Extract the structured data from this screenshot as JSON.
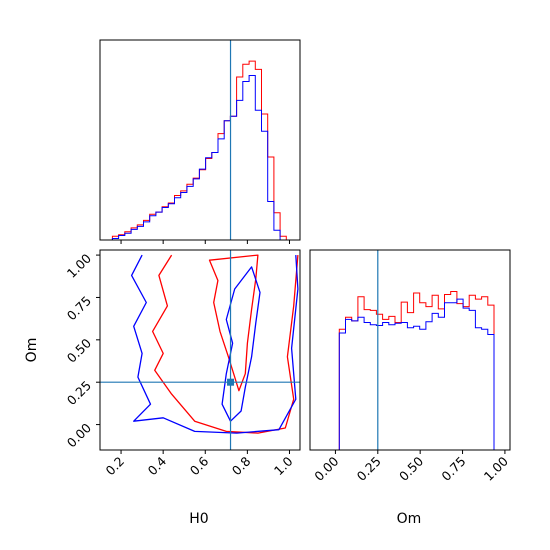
{
  "chart_data": [
    {
      "type": "histogram",
      "panel": "H0 marginal",
      "x_range": [
        0.1,
        1.05
      ],
      "bins": [
        0.1,
        0.1295,
        0.159,
        0.1885,
        0.218,
        0.2475,
        0.277,
        0.3065,
        0.336,
        0.3655,
        0.395,
        0.4245,
        0.454,
        0.4835,
        0.513,
        0.5425,
        0.572,
        0.6015,
        0.631,
        0.6605,
        0.69,
        0.7195,
        0.749,
        0.7785,
        0.808,
        0.8375,
        0.867,
        0.8965,
        0.926,
        0.9555,
        0.985,
        1.0145,
        1.044
      ],
      "series": [
        {
          "color": "#ff0000",
          "counts": [
            0,
            0,
            0.5,
            0.7,
            1.1,
            1.6,
            2.0,
            2.6,
            3.4,
            3.7,
            4.4,
            4.9,
            5.9,
            6.5,
            7.4,
            8.2,
            9.3,
            10.8,
            11.6,
            14.1,
            15.8,
            16.4,
            21.6,
            23.3,
            23.7,
            22.6,
            16.7,
            11.0,
            3.6,
            0.5,
            0,
            0
          ]
        },
        {
          "color": "#0000ff",
          "counts": [
            0,
            0,
            0.2,
            0.6,
            0.9,
            1.4,
            1.8,
            2.4,
            3.2,
            3.7,
            4.3,
            4.8,
            5.6,
            6.3,
            7.1,
            8.1,
            9.4,
            10.9,
            11.6,
            13.4,
            15.8,
            16.4,
            18.5,
            21.0,
            21.8,
            17.2,
            14.4,
            5.1,
            1.3,
            0,
            0,
            0
          ]
        }
      ],
      "marker_lines": {
        "x": 0.72,
        "color": "#1f77b4"
      }
    },
    {
      "type": "contour",
      "panel": "H0 vs Om",
      "xlabel": "H0",
      "ylabel": "Om",
      "x_range": [
        0.1,
        1.05
      ],
      "y_range": [
        -0.15,
        1.03
      ],
      "x_ticks": [
        "0.2",
        "0.4",
        "0.6",
        "0.8",
        "1.0"
      ],
      "y_ticks": [
        "0.00",
        "0.25",
        "0.50",
        "0.75",
        "1.00"
      ],
      "marker": {
        "x": 0.72,
        "y": 0.25,
        "color": "#1f77b4"
      },
      "series": [
        {
          "color": "#ff0000",
          "inner": [
            [
              0.62,
              0.97
            ],
            [
              0.66,
              0.85
            ],
            [
              0.64,
              0.72
            ],
            [
              0.67,
              0.55
            ],
            [
              0.71,
              0.4
            ],
            [
              0.74,
              0.28
            ],
            [
              0.76,
              0.2
            ],
            [
              0.79,
              0.3
            ],
            [
              0.8,
              0.48
            ],
            [
              0.82,
              0.68
            ],
            [
              0.84,
              0.86
            ],
            [
              0.85,
              1.0
            ]
          ],
          "outer_left": [
            [
              0.44,
              1.0
            ],
            [
              0.38,
              0.88
            ],
            [
              0.42,
              0.7
            ],
            [
              0.35,
              0.55
            ],
            [
              0.4,
              0.42
            ],
            [
              0.36,
              0.32
            ],
            [
              0.44,
              0.18
            ],
            [
              0.55,
              0.02
            ],
            [
              0.7,
              -0.04
            ],
            [
              0.85,
              -0.05
            ],
            [
              0.98,
              -0.02
            ],
            [
              1.02,
              0.15
            ],
            [
              0.99,
              0.4
            ],
            [
              1.02,
              0.7
            ],
            [
              1.04,
              1.0
            ]
          ]
        },
        {
          "color": "#0000ff",
          "inner": [
            [
              0.82,
              0.93
            ],
            [
              0.86,
              0.78
            ],
            [
              0.84,
              0.6
            ],
            [
              0.82,
              0.4
            ],
            [
              0.79,
              0.22
            ],
            [
              0.77,
              0.08
            ],
            [
              0.72,
              0.02
            ],
            [
              0.68,
              0.12
            ],
            [
              0.7,
              0.3
            ],
            [
              0.73,
              0.48
            ],
            [
              0.7,
              0.62
            ],
            [
              0.74,
              0.8
            ]
          ],
          "outer_left": [
            [
              0.3,
              1.0
            ],
            [
              0.25,
              0.88
            ],
            [
              0.32,
              0.72
            ],
            [
              0.26,
              0.58
            ],
            [
              0.3,
              0.42
            ],
            [
              0.28,
              0.28
            ],
            [
              0.34,
              0.12
            ],
            [
              0.26,
              0.02
            ],
            [
              0.4,
              0.04
            ],
            [
              0.55,
              -0.04
            ],
            [
              0.75,
              -0.05
            ],
            [
              0.95,
              -0.03
            ],
            [
              1.03,
              0.15
            ],
            [
              1.01,
              0.45
            ],
            [
              1.04,
              0.8
            ],
            [
              1.03,
              1.0
            ]
          ]
        }
      ]
    },
    {
      "type": "histogram",
      "panel": "Om marginal",
      "xlabel": "Om",
      "x_range": [
        -0.15,
        1.03
      ],
      "x_ticks": [
        "0.00",
        "0.25",
        "0.50",
        "0.75",
        "1.00"
      ],
      "bins": [
        -0.05,
        -0.0135,
        0.023,
        0.0595,
        0.096,
        0.1325,
        0.169,
        0.2055,
        0.242,
        0.2785,
        0.315,
        0.3515,
        0.388,
        0.4245,
        0.461,
        0.4975,
        0.534,
        0.5705,
        0.607,
        0.6435,
        0.68,
        0.7165,
        0.753,
        0.7895,
        0.826,
        0.8625,
        0.899,
        0.9355,
        0.972,
        1.0085
      ],
      "series": [
        {
          "color": "#ff0000",
          "counts": [
            0,
            0,
            16.0,
            17.6,
            17.1,
            20.3,
            18.6,
            18.5,
            18.0,
            17.3,
            17.7,
            16.9,
            19.6,
            18.2,
            20.8,
            19.5,
            19.0,
            20.5,
            18.7,
            20.6,
            21.0,
            19.4,
            19.0,
            20.5,
            20.0,
            20.3,
            19.2,
            0,
            0
          ]
        },
        {
          "color": "#0000ff",
          "counts": [
            0,
            0,
            15.5,
            17.3,
            17.1,
            17.6,
            16.9,
            16.6,
            16.5,
            16.9,
            16.6,
            16.8,
            16.9,
            16.2,
            16.4,
            16.0,
            17.0,
            18.1,
            17.6,
            19.5,
            19.5,
            20.0,
            18.8,
            18.5,
            16.2,
            16.0,
            15.3,
            0,
            0
          ]
        }
      ],
      "marker_lines": {
        "x": 0.25,
        "color": "#1f77b4"
      }
    }
  ]
}
